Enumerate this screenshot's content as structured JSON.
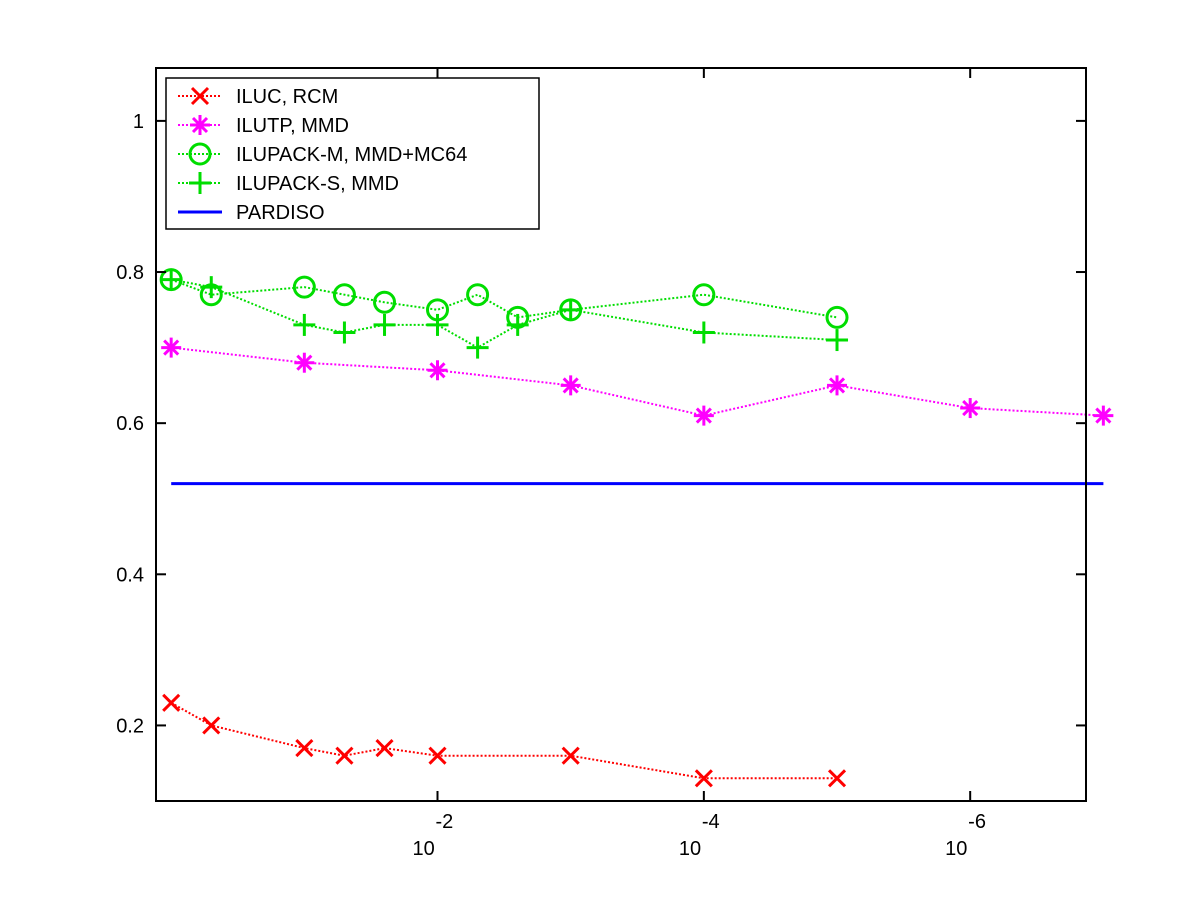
{
  "chart_data": {
    "type": "line",
    "title": "",
    "xlabel": "",
    "ylabel": "",
    "x_scale": "log10-reversed",
    "x_ticks": [
      {
        "value": 0.01,
        "base": "10",
        "exponent": "-2"
      },
      {
        "value": 0.0001,
        "base": "10",
        "exponent": "-4"
      },
      {
        "value": 1e-06,
        "base": "10",
        "exponent": "-6"
      }
    ],
    "xlim": [
      1.3,
      1.35e-07
    ],
    "ylim": [
      0.1,
      1.07
    ],
    "y_ticks": [
      {
        "value": 0.2,
        "label": "0.2"
      },
      {
        "value": 0.4,
        "label": "0.4"
      },
      {
        "value": 0.6,
        "label": "0.6"
      },
      {
        "value": 0.8,
        "label": "0.8"
      },
      {
        "value": 1.0,
        "label": "1"
      }
    ],
    "grid": false,
    "legend_position": "top-left",
    "series": [
      {
        "name": "ILUC, RCM",
        "color": "#ff0000",
        "marker": "x",
        "line_style": "dotted",
        "x": [
          1,
          0.5,
          0.1,
          0.05,
          0.025,
          0.01,
          0.001,
          0.0001,
          1e-05
        ],
        "y": [
          0.23,
          0.2,
          0.17,
          0.16,
          0.17,
          0.16,
          0.16,
          0.13,
          0.13
        ]
      },
      {
        "name": "ILUTP, MMD",
        "color": "#ff00ff",
        "marker": "asterisk",
        "line_style": "dotted",
        "x": [
          1,
          0.1,
          0.01,
          0.001,
          0.0001,
          1e-05,
          1e-06,
          1e-07
        ],
        "y": [
          0.7,
          0.68,
          0.67,
          0.65,
          0.61,
          0.65,
          0.62,
          0.61
        ]
      },
      {
        "name": "ILUPACK-M, MMD+MC64",
        "color": "#00dd00",
        "marker": "circle",
        "line_style": "dotted",
        "x": [
          1,
          0.5,
          0.1,
          0.05,
          0.025,
          0.01,
          0.005,
          0.0025,
          0.001,
          0.0001,
          1e-05
        ],
        "y": [
          0.79,
          0.77,
          0.78,
          0.77,
          0.76,
          0.75,
          0.77,
          0.74,
          0.75,
          0.77,
          0.74
        ]
      },
      {
        "name": "ILUPACK-S, MMD",
        "color": "#00dd00",
        "marker": "plus",
        "line_style": "dotted",
        "x": [
          1,
          0.5,
          0.1,
          0.05,
          0.025,
          0.01,
          0.005,
          0.0025,
          0.001,
          0.0001,
          1e-05
        ],
        "y": [
          0.79,
          0.78,
          0.73,
          0.72,
          0.73,
          0.73,
          0.7,
          0.73,
          0.75,
          0.72,
          0.71
        ]
      },
      {
        "name": "PARDISO",
        "color": "#0000ff",
        "marker": "none",
        "line_style": "solid",
        "x": [
          1,
          1e-07
        ],
        "y": [
          0.52,
          0.52
        ]
      }
    ]
  }
}
